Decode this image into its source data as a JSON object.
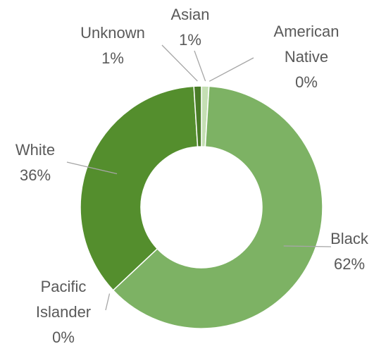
{
  "chart_data": {
    "type": "pie",
    "categories": [
      "Asian",
      "American Native",
      "Black",
      "Pacific Islander",
      "White",
      "Unknown"
    ],
    "values": [
      1,
      0,
      62,
      0,
      36,
      1
    ],
    "value_labels": [
      "1%",
      "0%",
      "62%",
      "0%",
      "36%",
      "1%"
    ],
    "colors": [
      "#c5dfb4",
      "#a9d18e",
      "#7db264",
      "#6aa84f",
      "#548e2d",
      "#4a7c28"
    ],
    "donut": true
  }
}
